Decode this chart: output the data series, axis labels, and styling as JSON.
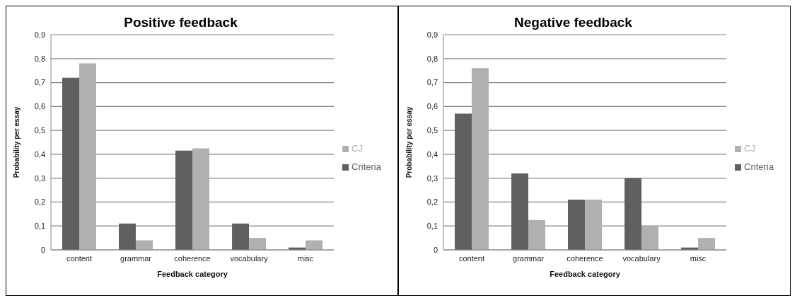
{
  "chart_data": [
    {
      "type": "bar",
      "title": "Positive feedback",
      "xlabel": "Feedback category",
      "ylabel": "Probability per essay",
      "categories": [
        "content",
        "grammar",
        "coherence",
        "vocabulary",
        "misc"
      ],
      "series": [
        {
          "name": "Criteria",
          "color": "#606060",
          "values": [
            0.72,
            0.11,
            0.415,
            0.11,
            0.01
          ]
        },
        {
          "name": "CJ",
          "color": "#b0b0b0",
          "values": [
            0.78,
            0.04,
            0.425,
            0.05,
            0.04
          ]
        }
      ],
      "ylim": [
        0,
        0.9
      ],
      "yticks": [
        0,
        {
          "value": 0.1,
          "label": "0,1"
        },
        {
          "value": 0.2,
          "label": "0,2"
        },
        {
          "value": 0.3,
          "label": "0,3"
        },
        {
          "value": 0.4,
          "label": "0,4"
        },
        {
          "value": 0.5,
          "label": "0,5"
        },
        {
          "value": 0.6,
          "label": "0,6"
        },
        {
          "value": 0.7,
          "label": "0,7"
        },
        {
          "value": 0.8,
          "label": "0,8"
        },
        {
          "value": 0.9,
          "label": "0,9"
        }
      ],
      "grid": "y",
      "legend": "right"
    },
    {
      "type": "bar",
      "title": "Negative feedback",
      "xlabel": "Feedback category",
      "ylabel": "Probability per essay",
      "categories": [
        "content",
        "grammar",
        "coherence",
        "vocabulary",
        "misc"
      ],
      "series": [
        {
          "name": "Criteria",
          "color": "#606060",
          "values": [
            0.57,
            0.32,
            0.21,
            0.3,
            0.01
          ]
        },
        {
          "name": "CJ",
          "color": "#b0b0b0",
          "values": [
            0.76,
            0.125,
            0.21,
            0.1,
            0.05
          ]
        }
      ],
      "ylim": [
        0,
        0.9
      ],
      "yticks": [
        0,
        {
          "value": 0.1,
          "label": "0,1"
        },
        {
          "value": 0.2,
          "label": "0,2"
        },
        {
          "value": 0.3,
          "label": "0,3"
        },
        {
          "value": 0.4,
          "label": "0,4"
        },
        {
          "value": 0.5,
          "label": "0,5"
        },
        {
          "value": 0.6,
          "label": "0,6"
        },
        {
          "value": 0.7,
          "label": "0,7"
        },
        {
          "value": 0.8,
          "label": "0,8"
        },
        {
          "value": 0.9,
          "label": "0,9"
        }
      ],
      "grid": "y",
      "legend": "right"
    }
  ]
}
